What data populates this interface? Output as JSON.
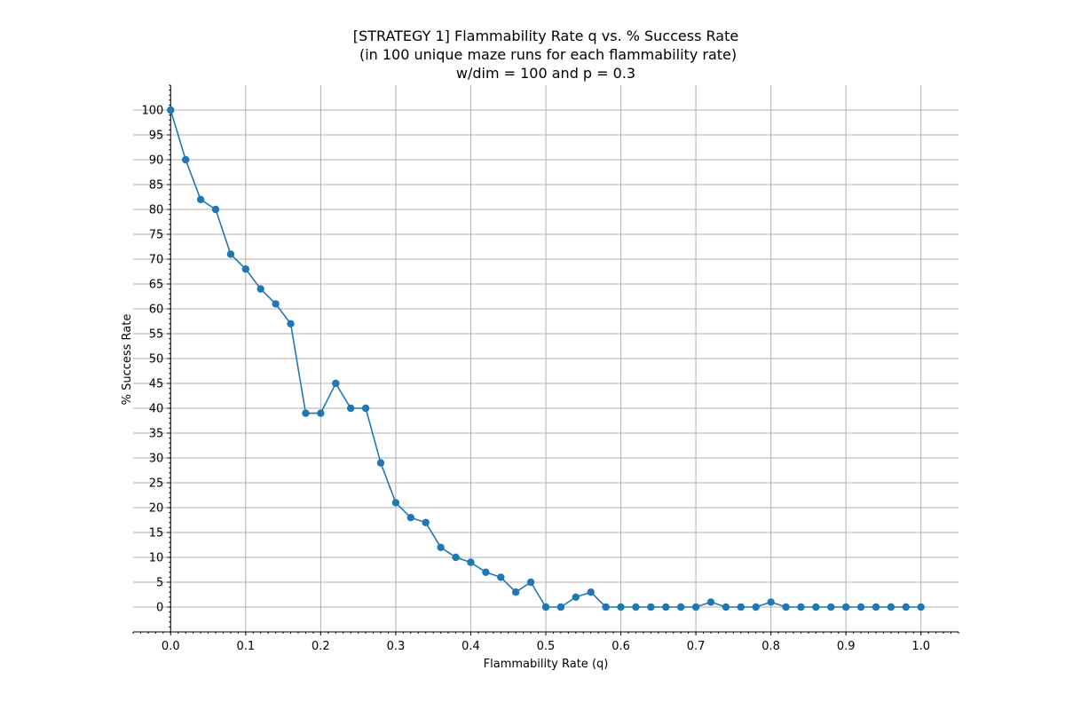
{
  "chart_data": {
    "type": "line",
    "title_lines": [
      "[STRATEGY 1] Flammability Rate q vs. % Success Rate",
      " (in 100 unique maze runs for each flammability rate)",
      "w/dim = 100 and p = 0.3"
    ],
    "xlabel": "Flammability Rate (q)",
    "ylabel": "% Success Rate",
    "xlim": [
      -0.05,
      1.05
    ],
    "ylim": [
      -5,
      105
    ],
    "x_ticks": [
      "0.0",
      "0.1",
      "0.2",
      "0.3",
      "0.4",
      "0.5",
      "0.6",
      "0.7",
      "0.8",
      "0.9",
      "1.0"
    ],
    "y_ticks": [
      "0",
      "5",
      "10",
      "15",
      "20",
      "25",
      "30",
      "35",
      "40",
      "45",
      "50",
      "55",
      "60",
      "65",
      "70",
      "75",
      "80",
      "85",
      "90",
      "95",
      "100"
    ],
    "grid": true,
    "series": [
      {
        "color": "#1f77b4",
        "marker": "circle",
        "x": [
          0.0,
          0.02,
          0.04,
          0.06,
          0.08,
          0.1,
          0.12,
          0.14,
          0.16,
          0.18,
          0.2,
          0.22,
          0.24,
          0.26,
          0.28,
          0.3,
          0.32,
          0.34,
          0.36,
          0.38,
          0.4,
          0.42,
          0.44,
          0.46,
          0.48,
          0.5,
          0.52,
          0.54,
          0.56,
          0.58,
          0.6,
          0.62,
          0.64,
          0.66,
          0.68,
          0.7,
          0.72,
          0.74,
          0.76,
          0.78,
          0.8,
          0.82,
          0.84,
          0.86,
          0.88,
          0.9,
          0.92,
          0.94,
          0.96,
          0.98,
          1.0
        ],
        "y": [
          100,
          90,
          82,
          80,
          71,
          68,
          64,
          61,
          57,
          39,
          39,
          45,
          40,
          40,
          29,
          21,
          18,
          17,
          12,
          10,
          9,
          7,
          6,
          3,
          5,
          0,
          0,
          2,
          3,
          0,
          0,
          0,
          0,
          0,
          0,
          0,
          1,
          0,
          0,
          0,
          1,
          0,
          0,
          0,
          0,
          0,
          0,
          0,
          0,
          0,
          0
        ]
      }
    ]
  }
}
